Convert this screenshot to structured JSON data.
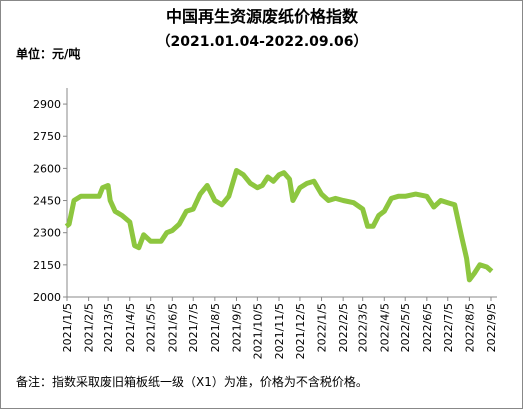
{
  "chart_data": {
    "type": "line",
    "title": "中国再生资源废纸价格指数",
    "subtitle": "（2021.01.04-2022.09.06）",
    "unit_label": "单位：元/吨",
    "footnote": "备注：指数采取废旧箱板纸一级（X1）为准，价格为不含税价格。",
    "x": [
      "2021/1/4",
      "2021/1/8",
      "2021/1/15",
      "2021/1/25",
      "2021/2/5",
      "2021/2/20",
      "2021/2/25",
      "2021/3/5",
      "2021/3/8",
      "2021/3/15",
      "2021/3/25",
      "2021/4/5",
      "2021/4/12",
      "2021/4/18",
      "2021/4/25",
      "2021/5/5",
      "2021/5/20",
      "2021/5/28",
      "2021/6/5",
      "2021/6/15",
      "2021/6/25",
      "2021/7/5",
      "2021/7/15",
      "2021/7/25",
      "2021/8/5",
      "2021/8/15",
      "2021/8/25",
      "2021/9/5",
      "2021/9/15",
      "2021/9/25",
      "2021/10/5",
      "2021/10/12",
      "2021/10/20",
      "2021/10/28",
      "2021/11/5",
      "2021/11/12",
      "2021/11/20",
      "2021/11/25",
      "2021/12/5",
      "2021/12/15",
      "2021/12/25",
      "2022/1/5",
      "2022/1/15",
      "2022/1/25",
      "2022/2/5",
      "2022/2/20",
      "2022/3/5",
      "2022/3/12",
      "2022/3/20",
      "2022/3/28",
      "2022/4/5",
      "2022/4/15",
      "2022/4/25",
      "2022/5/5",
      "2022/5/20",
      "2022/6/5",
      "2022/6/15",
      "2022/6/25",
      "2022/7/5",
      "2022/7/15",
      "2022/7/25",
      "2022/8/1",
      "2022/8/5",
      "2022/8/12",
      "2022/8/20",
      "2022/8/30",
      "2022/9/6"
    ],
    "series": [
      {
        "name": "废纸价格指数",
        "color": "#8dc63f",
        "values": [
          2330,
          2340,
          2450,
          2470,
          2470,
          2470,
          2510,
          2520,
          2450,
          2400,
          2380,
          2350,
          2240,
          2230,
          2290,
          2260,
          2260,
          2300,
          2310,
          2340,
          2400,
          2410,
          2480,
          2520,
          2450,
          2430,
          2470,
          2590,
          2570,
          2530,
          2510,
          2520,
          2560,
          2540,
          2570,
          2580,
          2550,
          2450,
          2510,
          2530,
          2540,
          2480,
          2450,
          2460,
          2450,
          2440,
          2410,
          2330,
          2330,
          2380,
          2400,
          2460,
          2470,
          2470,
          2480,
          2470,
          2420,
          2450,
          2440,
          2430,
          2280,
          2180,
          2080,
          2110,
          2150,
          2140,
          2120
        ]
      }
    ],
    "xlim": [
      "2021/1/5",
      "2022/9/5"
    ],
    "xticks": [
      "2021/1/5",
      "2021/2/5",
      "2021/3/5",
      "2021/4/5",
      "2021/5/5",
      "2021/6/5",
      "2021/7/5",
      "2021/8/5",
      "2021/9/5",
      "2021/10/5",
      "2021/11/5",
      "2021/12/5",
      "2022/1/5",
      "2022/2/5",
      "2022/3/5",
      "2022/4/5",
      "2022/5/5",
      "2022/6/5",
      "2022/7/5",
      "2022/8/5",
      "2022/9/5"
    ],
    "ylim": [
      2000,
      2975
    ],
    "yticks": [
      2000,
      2150,
      2300,
      2450,
      2600,
      2750,
      2900
    ]
  }
}
